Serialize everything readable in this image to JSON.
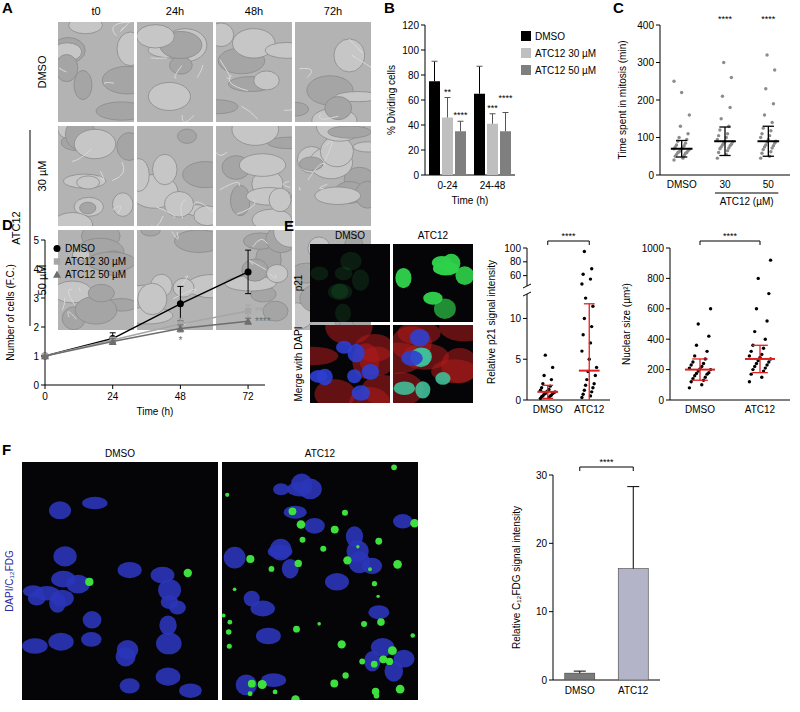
{
  "chart_data": [
    {
      "type": "bar",
      "panel_label": "B",
      "y_label": "% Dividing cells",
      "x_label": "Time (h)",
      "categories": [
        "0-24",
        "24-48"
      ],
      "series": [
        {
          "name": "DMSO",
          "color": "#000000",
          "values": [
            75,
            65
          ],
          "errors": [
            16,
            22
          ]
        },
        {
          "name": "ATC12 30 µM",
          "color": "#bfbfbf",
          "values": [
            46,
            41
          ],
          "errors": [
            16,
            8
          ],
          "annotations": [
            "**",
            "***"
          ]
        },
        {
          "name": "ATC12 50 µM",
          "color": "#7f7f7f",
          "values": [
            35,
            35
          ],
          "errors": [
            8,
            15
          ],
          "annotations": [
            "****",
            "****"
          ]
        }
      ],
      "ylim": [
        0,
        120
      ],
      "yticks": [
        0,
        20,
        40,
        60,
        80,
        100,
        120
      ],
      "legend": "right"
    },
    {
      "type": "scatter",
      "panel_label": "C",
      "y_label": "Time spent in mitosis (min)",
      "x_label": "ATC12 (µM)",
      "categories": [
        "DMSO",
        "30",
        "50"
      ],
      "points": [
        [
          40,
          45,
          50,
          52,
          55,
          58,
          60,
          60,
          62,
          65,
          65,
          68,
          70,
          70,
          72,
          75,
          78,
          80,
          85,
          90,
          95,
          100,
          110,
          130,
          160,
          220,
          250
        ],
        [
          45,
          55,
          60,
          65,
          70,
          72,
          75,
          78,
          80,
          82,
          85,
          88,
          90,
          95,
          100,
          105,
          110,
          120,
          130,
          150,
          180,
          210,
          260,
          300
        ],
        [
          45,
          50,
          58,
          62,
          68,
          72,
          75,
          78,
          80,
          85,
          88,
          90,
          95,
          100,
          105,
          110,
          118,
          125,
          140,
          160,
          190,
          230,
          280,
          320
        ]
      ],
      "mean": [
        70,
        90,
        90
      ],
      "sd": [
        22,
        38,
        40
      ],
      "annotations": [
        null,
        "****",
        "****"
      ],
      "color": "#000000",
      "ylim": [
        0,
        400
      ],
      "yticks": [
        0,
        100,
        200,
        300,
        400
      ]
    },
    {
      "type": "line",
      "panel_label": "D",
      "y_label": "Number of cells (F.C.)",
      "x_label": "Time (h)",
      "x": [
        0,
        24,
        48,
        72
      ],
      "series": [
        {
          "name": "DMSO",
          "color": "#000000",
          "marker": "circle",
          "values": [
            1,
            1.6,
            2.8,
            3.9
          ],
          "errors": [
            0,
            0.2,
            0.6,
            0.75
          ]
        },
        {
          "name": "ATC12 30 µM",
          "color": "#a6a6a6",
          "marker": "square",
          "values": [
            1,
            1.55,
            2.1,
            2.55
          ],
          "errors": [
            0,
            0.1,
            0.2,
            0.2
          ],
          "annotations": [
            null,
            null,
            null,
            "***"
          ]
        },
        {
          "name": "ATC12 50 µM",
          "color": "#6e6e6e",
          "marker": "triangle",
          "values": [
            1,
            1.5,
            1.95,
            2.2
          ],
          "errors": [
            0,
            0.1,
            0.12,
            0.1
          ],
          "annotations": [
            null,
            null,
            "*",
            "****"
          ]
        }
      ],
      "xlim": [
        0,
        78
      ],
      "xticks": [
        0,
        24,
        48,
        72
      ],
      "ylim": [
        0,
        5
      ],
      "yticks": [
        0,
        1,
        2,
        3,
        4,
        5
      ],
      "legend": "top-left"
    },
    {
      "type": "scatter",
      "categories": [
        "DMSO",
        "ATC12"
      ],
      "points": [
        [],
        [
          48,
          55,
          62,
          70,
          95
        ]
      ],
      "annotations": [
        "****"
      ],
      "color": "#e02020",
      "ylim": [
        45,
        100
      ],
      "yticks": [
        60,
        80,
        100
      ],
      "tick_labels": "y"
    },
    {
      "type": "scatter",
      "y_label": "Relative p21 signal intensity",
      "categories": [
        "DMSO",
        "ATC12"
      ],
      "points": [
        [
          0.2,
          0.3,
          0.4,
          0.5,
          0.5,
          0.6,
          0.7,
          0.8,
          0.8,
          0.9,
          1.0,
          1.0,
          1.1,
          1.2,
          1.3,
          1.5,
          1.7,
          2.0,
          2.5,
          3.0,
          4.0,
          5.5
        ],
        [
          0.3,
          0.5,
          0.7,
          1.0,
          1.2,
          1.5,
          1.8,
          2.0,
          2.5,
          3.0,
          3.5,
          4.0,
          5.0,
          6.0,
          7.0,
          8.0,
          9.0,
          10.0,
          11.5,
          12.5
        ]
      ],
      "mean": [
        1,
        3.6
      ],
      "sd": [
        0.8,
        8.2
      ],
      "color": "#e02020",
      "ylim": [
        0,
        13
      ],
      "yticks": [
        0,
        5,
        10
      ]
    },
    {
      "type": "scatter",
      "y_label": "Nuclear size (µm²)",
      "categories": [
        "DMSO",
        "ATC12"
      ],
      "points": [
        [
          80,
          100,
          120,
          130,
          140,
          150,
          160,
          170,
          175,
          180,
          190,
          200,
          205,
          210,
          220,
          230,
          240,
          250,
          270,
          290,
          320,
          360,
          420,
          500,
          600
        ],
        [
          120,
          150,
          170,
          190,
          200,
          210,
          220,
          230,
          240,
          250,
          260,
          270,
          280,
          290,
          300,
          320,
          340,
          360,
          400,
          450,
          520,
          600,
          700,
          800,
          920
        ]
      ],
      "mean": [
        200,
        270
      ],
      "sd": [
        70,
        90
      ],
      "annotations": [
        "****"
      ],
      "color": "#e02020",
      "ylim": [
        0,
        1000
      ],
      "yticks": [
        0,
        200,
        400,
        600,
        800,
        1000
      ]
    },
    {
      "type": "bar",
      "y_label": "Relative C₁₂FDG signal intensity",
      "categories": [
        "DMSO",
        "ATC12"
      ],
      "values": [
        1,
        16.3
      ],
      "errors": [
        0.3,
        12
      ],
      "colors": [
        "#7a7a7a",
        "#b4b4c8"
      ],
      "annotations": [
        "****"
      ],
      "ylim": [
        0,
        30
      ],
      "yticks": [
        0,
        10,
        20,
        30
      ]
    }
  ],
  "images": {
    "A": {
      "panel_label": "A",
      "columns": [
        "t0",
        "24h",
        "48h",
        "72h"
      ],
      "rows": [
        "DMSO",
        "30 µM",
        "50 µM"
      ],
      "row_group": "ATC12"
    },
    "E": {
      "panel_label": "E",
      "columns": [
        "DMSO",
        "ATC12"
      ],
      "rows": [
        "p21",
        "Merge with DAPI"
      ]
    },
    "F": {
      "panel_label": "F",
      "columns": [
        "DMSO",
        "ATC12"
      ],
      "channel_label": "DAPI/C₁₂FDG"
    }
  }
}
